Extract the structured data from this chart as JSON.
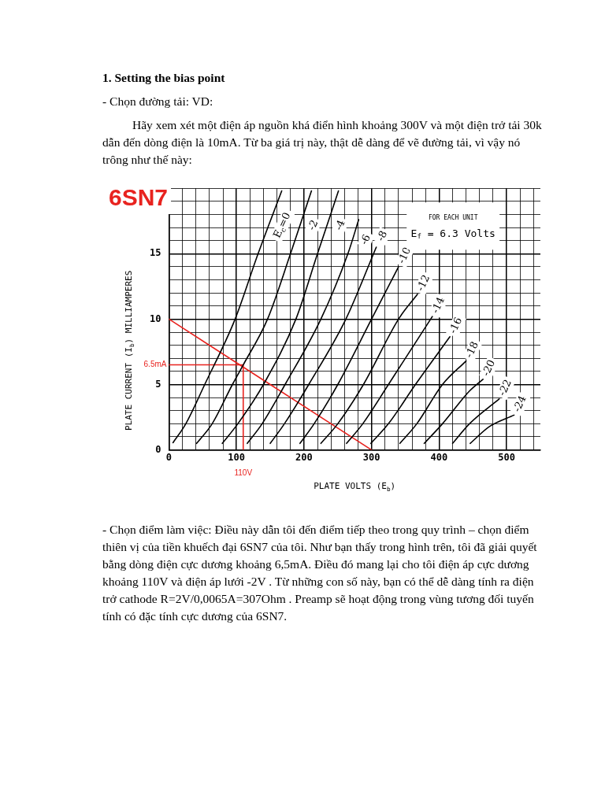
{
  "chart_data": {
    "type": "line",
    "title": "6SN7",
    "xlabel": "PLATE VOLTS (E$_{b}$)",
    "ylabel": "PLATE CURRENT (I$_{b}$) MILLIAMPERES",
    "xlim": [
      0,
      550
    ],
    "ylim": [
      0,
      20
    ],
    "xticks": [
      0,
      {
        "value": 20,
        "label": null
      },
      {
        "value": 40,
        "label": null
      },
      {
        "value": 60,
        "label": null
      },
      {
        "value": 80,
        "label": null
      },
      100,
      {
        "value": 120,
        "label": null
      },
      {
        "value": 140,
        "label": null
      },
      {
        "value": 160,
        "label": null
      },
      {
        "value": 180,
        "label": null
      },
      200,
      {
        "value": 220,
        "label": null
      },
      {
        "value": 240,
        "label": null
      },
      {
        "value": 260,
        "label": null
      },
      {
        "value": 280,
        "label": null
      },
      300,
      {
        "value": 320,
        "label": null
      },
      {
        "value": 340,
        "label": null
      },
      {
        "value": 360,
        "label": null
      },
      {
        "value": 380,
        "label": null
      },
      400,
      {
        "value": 420,
        "label": null
      },
      {
        "value": 440,
        "label": null
      },
      {
        "value": 460,
        "label": null
      },
      {
        "value": 480,
        "label": null
      },
      500,
      {
        "value": 520,
        "label": null
      },
      {
        "value": 540,
        "label": null
      }
    ],
    "yticks": [
      0,
      {
        "value": 1,
        "label": null
      },
      {
        "value": 2,
        "label": null
      },
      {
        "value": 3,
        "label": null
      },
      {
        "value": 4,
        "label": null
      },
      5,
      {
        "value": 6,
        "label": null
      },
      {
        "value": 7,
        "label": null
      },
      {
        "value": 8,
        "label": null
      },
      {
        "value": 9,
        "label": null
      },
      10,
      {
        "value": 11,
        "label": null
      },
      {
        "value": 12,
        "label": null
      },
      {
        "value": 13,
        "label": null
      },
      {
        "value": 14,
        "label": null
      },
      15,
      {
        "value": 16,
        "label": null
      },
      {
        "value": 17,
        "label": null
      },
      {
        "value": 18,
        "label": null
      },
      {
        "value": 19,
        "label": null
      },
      {
        "value": 20,
        "label": null
      }
    ],
    "grid": true,
    "legend": false,
    "marker": "none",
    "line_style": "solid",
    "series": [
      {
        "name": "E$_{c}$=0",
        "color": "#000000",
        "x": [
          6,
          25,
          53,
          98,
          132,
          167
        ],
        "values": [
          0.55,
          2,
          5,
          10,
          15,
          19.8
        ]
      },
      {
        "name": "-2",
        "color": "#000000",
        "x": [
          41,
          64,
          94,
          110,
          146,
          180,
          211
        ],
        "values": [
          0.5,
          2,
          5,
          6.5,
          10,
          15,
          19.8
        ]
      },
      {
        "name": "-4",
        "color": "#000000",
        "x": [
          79,
          102,
          140,
          188,
          220,
          251
        ],
        "values": [
          0.5,
          2,
          5,
          10,
          15,
          19.8
        ]
      },
      {
        "name": "-6",
        "color": "#000000",
        "x": [
          116,
          138,
          172,
          225,
          265,
          281
        ],
        "values": [
          0.5,
          2,
          5,
          10,
          15,
          17.6
        ]
      },
      {
        "name": "-8",
        "color": "#000000",
        "x": [
          150,
          171,
          207,
          262,
          307
        ],
        "values": [
          0.5,
          2,
          5,
          10,
          15.5
        ]
      },
      {
        "name": "-10",
        "color": "#000000",
        "x": [
          194,
          215,
          250,
          300,
          340
        ],
        "values": [
          0.5,
          2,
          5,
          10,
          14
        ]
      },
      {
        "name": "-12",
        "color": "#000000",
        "x": [
          225,
          250,
          288,
          340,
          368
        ],
        "values": [
          0.5,
          2,
          5,
          10,
          11.9
        ]
      },
      {
        "name": "-14",
        "color": "#000000",
        "x": [
          263,
          287,
          325,
          390
        ],
        "values": [
          0.5,
          2,
          5,
          10.2
        ]
      },
      {
        "name": "-16",
        "color": "#000000",
        "x": [
          299,
          325,
          365,
          416
        ],
        "values": [
          0.5,
          2,
          5,
          8.65
        ]
      },
      {
        "name": "-18",
        "color": "#000000",
        "x": [
          342,
          367,
          405,
          440
        ],
        "values": [
          0.5,
          2,
          5,
          6.8
        ]
      },
      {
        "name": "-20",
        "color": "#000000",
        "x": [
          378,
          405,
          445,
          465
        ],
        "values": [
          0.5,
          2,
          4.5,
          5.4
        ]
      },
      {
        "name": "-22",
        "color": "#000000",
        "x": [
          420,
          445,
          489
        ],
        "values": [
          0.5,
          2,
          3.9
        ]
      },
      {
        "name": "-24",
        "color": "#000000",
        "x": [
          446,
          475,
          511
        ],
        "values": [
          0.5,
          1.8,
          2.66
        ]
      },
      {
        "color": "#e8231f",
        "x": [
          0,
          300
        ],
        "values": [
          10,
          0
        ]
      },
      {
        "color": "#e8231f",
        "x": [
          0,
          110,
          110
        ],
        "values": [
          6.5,
          6.5,
          0
        ]
      }
    ],
    "annotations": [
      "1. Setting the bias point",
      "- Chọn đường tải: VD:",
      "Hãy xem xét một điện áp nguồn khá điển hình khoảng 300V và một điện trở tải 30k dẫn đến dòng điện là 10mA. Từ ba giá trị này, thật dễ dàng để vẽ đường tải, vì vậy nó trông như thế này:",
      "FOR EACH UNIT",
      "E$_{f}$ = 6.3 Volts",
      {
        "text": "6.5mA",
        "x": 0,
        "y": 6.5
      },
      {
        "text": "110V",
        "x": 110,
        "y": 0
      },
      "- Chọn điểm làm việc: Điều này dẫn tôi đến điểm tiếp theo trong quy trình – chọn điểm thiên vị của tiền khuếch đại 6SN7 của tôi. Như bạn thấy trong hình trên, tôi đã giải quyết bằng dòng điện cực dương khoảng 6,5mA. Điều đó mang lại cho tôi điện áp cực dương khoảng 110V và điện áp lưới -2V . Từ những con số này, bạn có thể dễ dàng tính ra điện trở cathode R=2V/0,0065A=307Ohm . Preamp sẽ hoạt động trong vùng tương đối tuyến tính có đặc tính cực dương của 6SN7."
    ]
  }
}
